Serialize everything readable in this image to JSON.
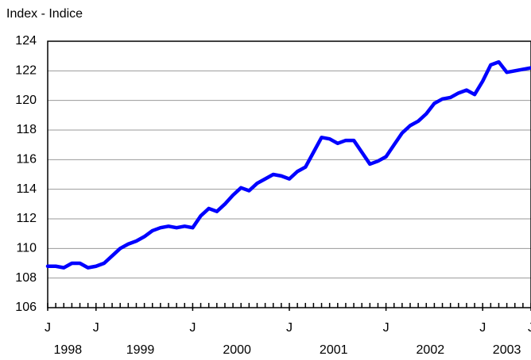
{
  "chart_data": {
    "type": "line",
    "title": "Index - Indice",
    "x": [
      "1998-07",
      "1998-08",
      "1998-09",
      "1998-10",
      "1998-11",
      "1998-12",
      "1999-01",
      "1999-02",
      "1999-03",
      "1999-04",
      "1999-05",
      "1999-06",
      "1999-07",
      "1999-08",
      "1999-09",
      "1999-10",
      "1999-11",
      "1999-12",
      "2000-01",
      "2000-02",
      "2000-03",
      "2000-04",
      "2000-05",
      "2000-06",
      "2000-07",
      "2000-08",
      "2000-09",
      "2000-10",
      "2000-11",
      "2000-12",
      "2001-01",
      "2001-02",
      "2001-03",
      "2001-04",
      "2001-05",
      "2001-06",
      "2001-07",
      "2001-08",
      "2001-09",
      "2001-10",
      "2001-11",
      "2001-12",
      "2002-01",
      "2002-02",
      "2002-03",
      "2002-04",
      "2002-05",
      "2002-06",
      "2002-07",
      "2002-08",
      "2002-09",
      "2002-10",
      "2002-11",
      "2002-12",
      "2003-01",
      "2003-02",
      "2003-03",
      "2003-04",
      "2003-05",
      "2003-06",
      "2003-07"
    ],
    "series": [
      {
        "color": "#0000ff",
        "values": [
          108.8,
          108.8,
          108.7,
          109.0,
          109.0,
          108.7,
          108.8,
          109.0,
          109.5,
          110.0,
          110.3,
          110.5,
          110.8,
          111.2,
          111.4,
          111.5,
          111.4,
          111.5,
          111.4,
          112.2,
          112.7,
          112.5,
          113.0,
          113.6,
          114.1,
          113.9,
          114.4,
          114.7,
          115.0,
          114.9,
          114.7,
          115.2,
          115.5,
          116.5,
          117.5,
          117.4,
          117.1,
          117.3,
          117.3,
          116.5,
          115.7,
          115.9,
          116.2,
          117.0,
          117.8,
          118.3,
          118.6,
          119.1,
          119.8,
          120.1,
          120.2,
          120.5,
          120.7,
          120.4,
          121.3,
          122.4,
          122.6,
          121.9,
          122.0,
          122.1,
          122.2
        ]
      }
    ],
    "xlim": [
      "1998-07",
      "2003-07"
    ],
    "xticks": [
      {
        "value": "1998-07",
        "label": "J"
      },
      {
        "value": "1999-01",
        "label": "J"
      },
      {
        "value": "2000-01",
        "label": "J"
      },
      {
        "value": "2001-01",
        "label": "J"
      },
      {
        "value": "2002-01",
        "label": "J"
      },
      {
        "value": "2003-01",
        "label": "J"
      },
      {
        "value": "2003-07",
        "label": "J"
      }
    ],
    "years": [
      "1998",
      "1999",
      "2000",
      "2001",
      "2002",
      "2003"
    ],
    "ylim": [
      106,
      124
    ],
    "yticks": [
      106,
      108,
      110,
      112,
      114,
      116,
      118,
      120,
      122,
      124
    ],
    "grid": true
  }
}
